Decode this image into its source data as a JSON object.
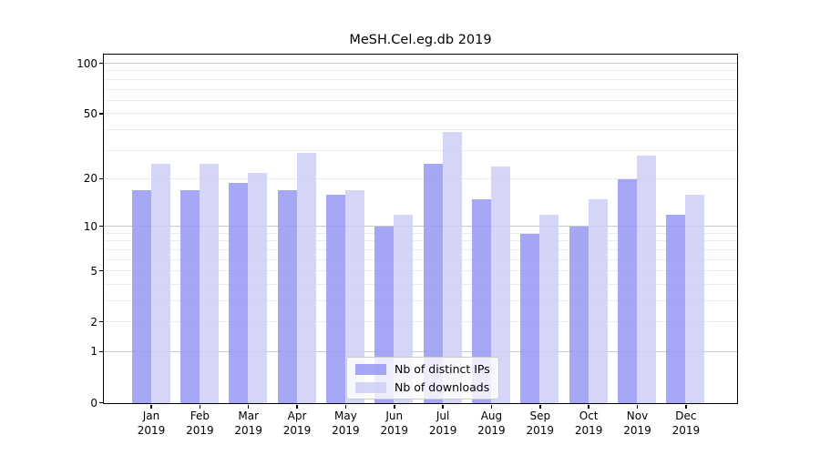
{
  "title": "MeSH.Cel.eg.db 2019",
  "chart_data": {
    "type": "bar",
    "title": "MeSH.Cel.eg.db 2019",
    "categories": [
      {
        "month": "Jan",
        "year": "2019"
      },
      {
        "month": "Feb",
        "year": "2019"
      },
      {
        "month": "Mar",
        "year": "2019"
      },
      {
        "month": "Apr",
        "year": "2019"
      },
      {
        "month": "May",
        "year": "2019"
      },
      {
        "month": "Jun",
        "year": "2019"
      },
      {
        "month": "Jul",
        "year": "2019"
      },
      {
        "month": "Aug",
        "year": "2019"
      },
      {
        "month": "Sep",
        "year": "2019"
      },
      {
        "month": "Oct",
        "year": "2019"
      },
      {
        "month": "Nov",
        "year": "2019"
      },
      {
        "month": "Dec",
        "year": "2019"
      }
    ],
    "series": [
      {
        "name": "Nb of distinct IPs",
        "color": "#9a9af6",
        "values": [
          17,
          17,
          19,
          17,
          16,
          10,
          25,
          15,
          9,
          10,
          20,
          12
        ]
      },
      {
        "name": "Nb of downloads",
        "color": "#cfcff6",
        "values": [
          25,
          25,
          22,
          29,
          17,
          12,
          39,
          24,
          12,
          15,
          28,
          16
        ]
      }
    ],
    "y_axis": {
      "scale": "log1p",
      "ticks": [
        0,
        1,
        2,
        5,
        10,
        20,
        50,
        100
      ],
      "minor_gridlines": [
        2,
        3,
        4,
        5,
        6,
        7,
        8,
        9,
        20,
        30,
        40,
        50,
        60,
        70,
        80,
        90
      ],
      "major_gridlines": [
        1,
        10,
        100
      ],
      "max": 112
    },
    "xlabel": "",
    "ylabel": "",
    "grid": true,
    "legend_position": "lower center"
  },
  "colors": {
    "bar_distinct_ips": "#9a9af6",
    "bar_downloads": "#cfcff6",
    "gridline_minor": "#ebebeb",
    "gridline_major": "#c9c9c9",
    "spine": "#000000",
    "background": "#ffffff",
    "legend_border": "#cccccc"
  }
}
